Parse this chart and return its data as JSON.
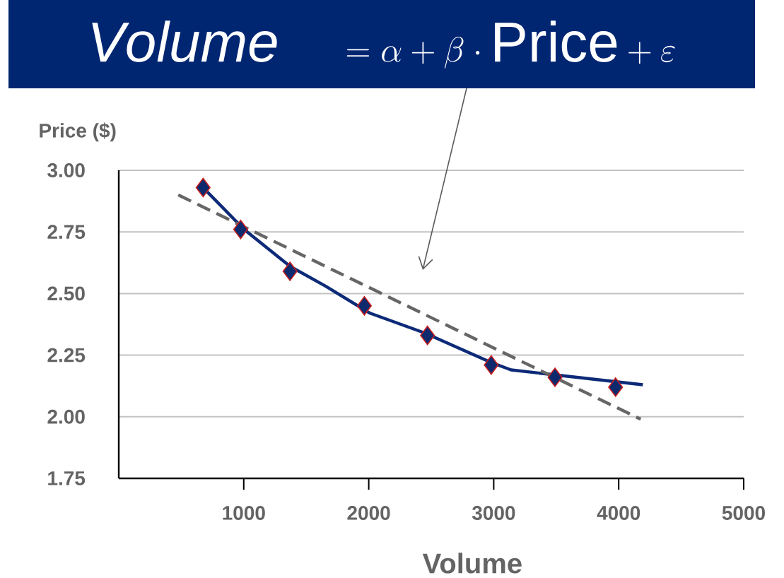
{
  "chart_data": {
    "type": "scatter",
    "title": "\\mathit{Volume}\\quad = \\alpha + \\beta\\cdot \\mathrm{Price} + \\varepsilon",
    "xlabel": "Volume",
    "ylabel": "Price ($)",
    "xlim": [
      0,
      5000
    ],
    "ylim": [
      1.75,
      3.0
    ],
    "xticks": [
      1000,
      2000,
      3000,
      4000,
      5000
    ],
    "yticks": [
      {
        "value": 1.75,
        "label": "1.75"
      },
      {
        "value": 2.0,
        "label": "2.00"
      },
      {
        "value": 2.25,
        "label": "2.25"
      },
      {
        "value": 2.5,
        "label": "2.50"
      },
      {
        "value": 2.75,
        "label": "2.75"
      },
      {
        "value": 3.0,
        "label": "3.00"
      }
    ],
    "grid": "y",
    "series": [
      {
        "type": "line",
        "color": "#0d2a78",
        "marker": "none",
        "line_style": "solid",
        "x": [
          674,
          1003,
          1371,
          1654,
          2011,
          2448,
          2980,
          3139,
          3490,
          4193
        ],
        "values": [
          2.93,
          2.76,
          2.61,
          2.53,
          2.42,
          2.34,
          2.22,
          2.19,
          2.17,
          2.13
        ]
      },
      {
        "type": "line",
        "color": "#666666",
        "marker": "none",
        "line_style": "dashed",
        "x": [
          476,
          4176
        ],
        "values": [
          2.9,
          1.99
        ]
      },
      {
        "color": "#0d2a6e",
        "marker": "diamond",
        "x": [
          675,
          975,
          1370,
          1965,
          2470,
          2980,
          3490,
          3975
        ],
        "values": [
          2.93,
          2.76,
          2.59,
          2.45,
          2.33,
          2.21,
          2.16,
          2.12
        ]
      }
    ]
  }
}
